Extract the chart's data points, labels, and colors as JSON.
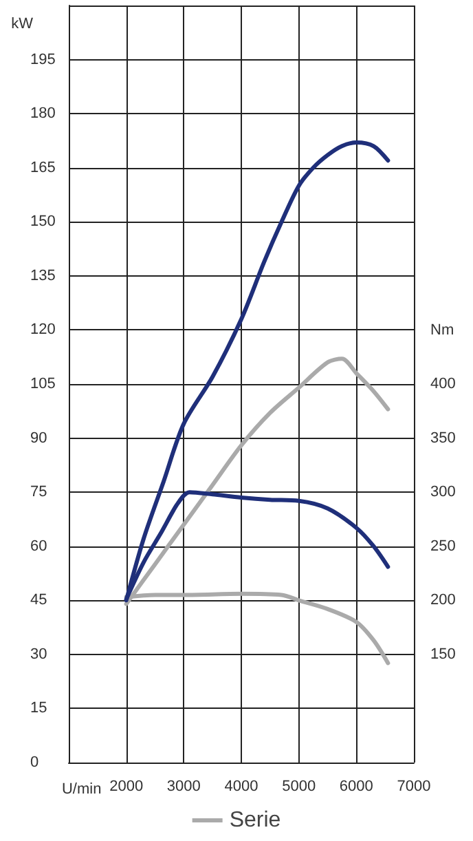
{
  "chart_data": {
    "type": "line",
    "xlabel": "U/min",
    "ylabel": "kW",
    "y2label": "Nm",
    "xlim": [
      1000,
      7000
    ],
    "xticks": [
      2000,
      3000,
      4000,
      5000,
      6000,
      7000
    ],
    "ylim": [
      0,
      210
    ],
    "yticks": [
      0,
      15,
      30,
      45,
      60,
      75,
      90,
      105,
      120,
      135,
      150,
      165,
      180,
      195
    ],
    "y2lim": [
      50,
      750
    ],
    "y2ticks": [
      150,
      200,
      250,
      300,
      350,
      400
    ],
    "grid": true,
    "legend": "bottom",
    "marker": "none",
    "line_style": "solid",
    "series": [
      {
        "name": "Serie",
        "color": "#aaaaaa",
        "x": [
          2000,
          2500,
          3000,
          3500,
          4000,
          4500,
          5000,
          5500,
          5750,
          6000,
          6300,
          6550
        ],
        "values": [
          44,
          55,
          66,
          77,
          88,
          97,
          104,
          111,
          112,
          108,
          103,
          98
        ]
      },
      {
        "color": "#aaaaaa",
        "axis": "y2",
        "x": [
          2000,
          2500,
          3000,
          4000,
          4700,
          5000,
          5500,
          6000,
          6300,
          6550
        ],
        "values": [
          203,
          205,
          205,
          206,
          205,
          200,
          192,
          180,
          163,
          142
        ]
      },
      {
        "color": "#1f2f7a",
        "x": [
          2000,
          2300,
          2650,
          3000,
          3500,
          4000,
          4400,
          4700,
          5000,
          5250,
          5500,
          5750,
          6000,
          6300,
          6550
        ],
        "values": [
          45,
          62,
          78,
          94,
          107,
          123,
          139,
          150,
          160,
          165,
          168.5,
          171,
          172,
          171,
          167
        ]
      },
      {
        "color": "#1f2f7a",
        "axis": "y2",
        "x": [
          2000,
          2300,
          2600,
          2900,
          3100,
          3500,
          4000,
          4500,
          5000,
          5500,
          6000,
          6300,
          6550
        ],
        "values": [
          201,
          235,
          262,
          290,
          300,
          298,
          295,
          293,
          292,
          285,
          267,
          250,
          231
        ]
      }
    ]
  }
}
